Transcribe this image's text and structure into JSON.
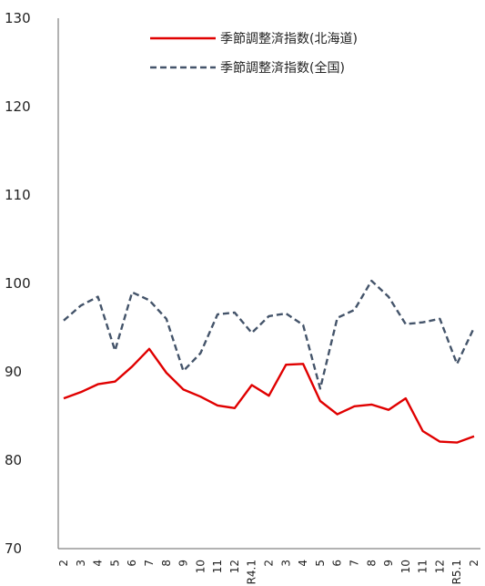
{
  "chart_data": {
    "type": "line",
    "title": "",
    "xlabel": "",
    "ylabel": "",
    "ylim": [
      70,
      130
    ],
    "yticks": [
      70,
      80,
      90,
      100,
      110,
      120,
      130
    ],
    "grid": false,
    "legend_position": "top-right",
    "categories": [
      "2",
      "3",
      "4",
      "5",
      "6",
      "7",
      "8",
      "9",
      "10",
      "11",
      "12",
      "R4.1",
      "2",
      "3",
      "4",
      "5",
      "6",
      "7",
      "8",
      "9",
      "10",
      "11",
      "12",
      "R5.1",
      "2"
    ],
    "series": [
      {
        "name": "季節調整済指数(北海道)",
        "color": "#e00000",
        "style": "solid",
        "values": [
          87.0,
          87.7,
          88.6,
          88.9,
          90.6,
          92.6,
          89.9,
          88.0,
          87.2,
          86.2,
          85.9,
          88.5,
          87.3,
          90.8,
          90.9,
          86.7,
          85.2,
          86.1,
          86.3,
          85.7,
          87.0,
          83.3,
          82.1,
          82.0,
          82.7
        ]
      },
      {
        "name": "季節調整済指数(全国)",
        "color": "#44546a",
        "style": "dashed",
        "values": [
          95.8,
          97.5,
          98.5,
          92.4,
          99.0,
          98.1,
          96.0,
          90.1,
          92.1,
          96.5,
          96.7,
          94.4,
          96.3,
          96.6,
          95.3,
          88.1,
          96.1,
          97.0,
          100.3,
          98.5,
          95.4,
          95.6,
          96.0,
          90.9,
          95.0
        ]
      }
    ]
  }
}
